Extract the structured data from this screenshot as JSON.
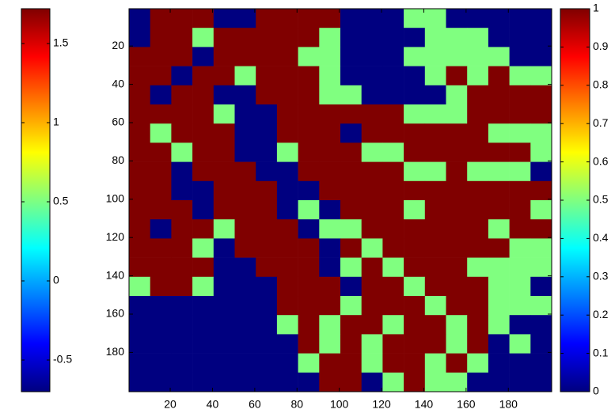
{
  "chart_data": {
    "type": "heatmap",
    "colormap": "jet",
    "xlim": [
      0.5,
      200.5
    ],
    "ylim": [
      0.5,
      200.5
    ],
    "y_reversed": true,
    "xticks": [
      20,
      40,
      60,
      80,
      100,
      120,
      140,
      160,
      180
    ],
    "yticks": [
      20,
      40,
      60,
      80,
      100,
      120,
      140,
      160,
      180
    ],
    "z": [
      [
        0,
        1,
        1,
        1,
        0,
        0,
        1,
        1,
        1,
        1,
        0,
        0,
        0,
        0.5,
        0.5,
        0,
        0,
        0,
        0,
        0
      ],
      [
        0,
        1,
        1,
        0.5,
        1,
        1,
        1,
        1,
        1,
        0.5,
        0,
        0,
        0,
        0,
        0.5,
        0.5,
        0.5,
        0,
        0,
        0
      ],
      [
        1,
        1,
        1,
        0,
        1,
        1,
        1,
        1,
        0.5,
        0.5,
        0,
        0,
        0,
        0.5,
        0.5,
        0.5,
        0.5,
        0.5,
        0,
        0
      ],
      [
        1,
        1,
        0,
        1,
        1,
        0.5,
        1,
        1,
        1,
        0.5,
        0,
        0,
        0,
        0,
        0.5,
        1,
        0.5,
        1,
        0.5,
        0.5
      ],
      [
        1,
        0,
        1,
        1,
        0,
        0,
        1,
        1,
        1,
        0.5,
        0.5,
        0,
        0,
        0,
        0,
        0.5,
        1,
        1,
        1,
        1
      ],
      [
        1,
        1,
        1,
        1,
        0.5,
        0,
        0,
        1,
        1,
        1,
        1,
        1,
        1,
        0.5,
        0.5,
        0.5,
        1,
        1,
        1,
        1
      ],
      [
        1,
        0.5,
        1,
        1,
        1,
        0,
        0,
        1,
        1,
        1,
        0,
        1,
        1,
        1,
        1,
        1,
        1,
        0.5,
        0.5,
        0.5
      ],
      [
        1,
        1,
        0.5,
        1,
        1,
        0,
        0,
        0.5,
        1,
        1,
        1,
        0.5,
        0.5,
        1,
        1,
        1,
        1,
        1,
        1,
        0.5
      ],
      [
        1,
        1,
        0,
        1,
        1,
        1,
        0,
        0,
        1,
        1,
        1,
        1,
        1,
        0.5,
        0.5,
        1,
        0.5,
        0.5,
        0.5,
        0
      ],
      [
        1,
        1,
        0,
        0,
        1,
        1,
        1,
        0,
        0,
        1,
        1,
        1,
        1,
        1,
        1,
        1,
        1,
        1,
        1,
        1
      ],
      [
        1,
        1,
        1,
        0,
        1,
        1,
        1,
        0,
        0.5,
        0,
        1,
        1,
        1,
        0.5,
        1,
        1,
        1,
        1,
        1,
        0.5
      ],
      [
        1,
        0,
        1,
        1,
        0.5,
        1,
        1,
        1,
        0,
        0.5,
        0.5,
        1,
        1,
        1,
        1,
        1,
        1,
        0.5,
        1,
        1
      ],
      [
        1,
        1,
        1,
        0.5,
        0,
        1,
        1,
        1,
        1,
        0,
        1,
        0.5,
        1,
        1,
        1,
        1,
        1,
        1,
        0.5,
        0.5
      ],
      [
        1,
        1,
        1,
        1,
        0,
        0,
        1,
        1,
        1,
        0,
        0.5,
        1,
        0.5,
        1,
        1,
        1,
        0.5,
        0.5,
        0.5,
        0.5
      ],
      [
        0.5,
        1,
        1,
        0.5,
        0,
        0,
        0,
        1,
        1,
        1,
        0,
        1,
        1,
        0.5,
        1,
        1,
        1,
        0.5,
        0.5,
        0
      ],
      [
        0,
        0,
        0,
        0,
        0,
        0,
        0,
        1,
        1,
        1,
        0.5,
        1,
        1,
        1,
        0.5,
        1,
        1,
        0.5,
        0.5,
        0.5
      ],
      [
        0,
        0,
        0,
        0,
        0,
        0,
        0,
        0.5,
        1,
        0.5,
        1,
        1,
        0.5,
        1,
        1,
        0.5,
        1,
        0.5,
        0,
        0
      ],
      [
        0,
        0,
        0,
        0,
        0,
        0,
        0,
        0,
        1,
        0.5,
        1,
        0.5,
        1,
        1,
        1,
        0.5,
        1,
        0,
        0.5,
        0
      ],
      [
        0,
        0,
        0,
        0,
        0,
        0,
        0,
        0,
        0.5,
        1,
        1,
        0.5,
        1,
        1,
        0.5,
        1,
        0.5,
        0,
        0,
        0
      ],
      [
        0,
        0,
        0,
        0,
        0,
        0,
        0,
        0,
        0,
        1,
        1,
        0,
        0.5,
        1,
        0.5,
        0.5,
        0,
        0,
        0,
        0
      ]
    ],
    "colorbars": [
      {
        "clim": [
          -0.7,
          1.72
        ],
        "ticks": [
          -0.5,
          0,
          0.5,
          1,
          1.5
        ]
      },
      {
        "clim": [
          0,
          1
        ],
        "ticks": [
          0,
          0.1,
          0.2,
          0.3,
          0.4,
          0.5,
          0.6,
          0.7,
          0.8,
          0.9,
          1
        ]
      }
    ]
  }
}
